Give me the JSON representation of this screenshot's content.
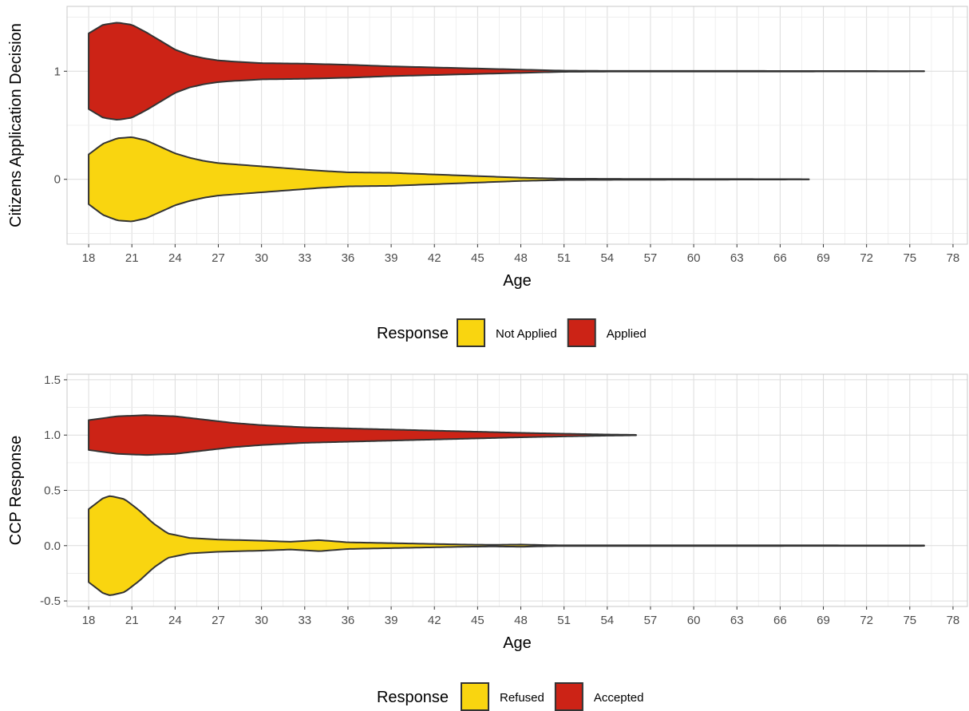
{
  "chart_data": [
    {
      "type": "violin",
      "xlabel": "Age",
      "ylabel": "Citizens Application Decision",
      "xlim": [
        16.5,
        79
      ],
      "ylim": [
        -0.6,
        1.6
      ],
      "x_ticks": [
        "18",
        "21",
        "24",
        "27",
        "30",
        "33",
        "36",
        "39",
        "42",
        "45",
        "48",
        "51",
        "54",
        "57",
        "60",
        "63",
        "66",
        "69",
        "72",
        "75",
        "78"
      ],
      "y_ticks": [
        "0",
        "1"
      ],
      "grid": true,
      "legend": {
        "title": "Response",
        "position": "bottom",
        "entries": [
          {
            "label": "Not Applied",
            "color": "#F9D510"
          },
          {
            "label": "Applied",
            "color": "#CC2316"
          }
        ]
      },
      "series": [
        {
          "name": "Not Applied",
          "color": "#F9D510",
          "y_center": 0,
          "halfwidth": [
            [
              18,
              0.23
            ],
            [
              19,
              0.33
            ],
            [
              20,
              0.38
            ],
            [
              21,
              0.39
            ],
            [
              22,
              0.36
            ],
            [
              23,
              0.3
            ],
            [
              24,
              0.24
            ],
            [
              25,
              0.2
            ],
            [
              26,
              0.17
            ],
            [
              27,
              0.15
            ],
            [
              28,
              0.14
            ],
            [
              30,
              0.12
            ],
            [
              32,
              0.1
            ],
            [
              34,
              0.08
            ],
            [
              36,
              0.065
            ],
            [
              39,
              0.06
            ],
            [
              42,
              0.045
            ],
            [
              45,
              0.03
            ],
            [
              48,
              0.015
            ],
            [
              51,
              0.006
            ],
            [
              55,
              0.004
            ],
            [
              60,
              0.003
            ],
            [
              65,
              0.002
            ],
            [
              68,
              0.001
            ]
          ]
        },
        {
          "name": "Applied",
          "color": "#CC2316",
          "y_center": 1,
          "halfwidth": [
            [
              18,
              0.35
            ],
            [
              19,
              0.43
            ],
            [
              20,
              0.45
            ],
            [
              21,
              0.43
            ],
            [
              22,
              0.36
            ],
            [
              23,
              0.28
            ],
            [
              24,
              0.2
            ],
            [
              25,
              0.15
            ],
            [
              26,
              0.12
            ],
            [
              27,
              0.1
            ],
            [
              28,
              0.09
            ],
            [
              30,
              0.075
            ],
            [
              33,
              0.07
            ],
            [
              36,
              0.06
            ],
            [
              39,
              0.045
            ],
            [
              42,
              0.035
            ],
            [
              45,
              0.025
            ],
            [
              48,
              0.015
            ],
            [
              51,
              0.005
            ],
            [
              54,
              0.003
            ],
            [
              60,
              0.003
            ],
            [
              70,
              0.002
            ],
            [
              76,
              0.001
            ]
          ]
        }
      ]
    },
    {
      "type": "violin",
      "xlabel": "Age",
      "ylabel": "CCP Response",
      "xlim": [
        16.5,
        79
      ],
      "ylim": [
        -0.55,
        1.55
      ],
      "x_ticks": [
        "18",
        "21",
        "24",
        "27",
        "30",
        "33",
        "36",
        "39",
        "42",
        "45",
        "48",
        "51",
        "54",
        "57",
        "60",
        "63",
        "66",
        "69",
        "72",
        "75",
        "78"
      ],
      "y_ticks": [
        "-0.5",
        "0.0",
        "0.5",
        "1.0",
        "1.5"
      ],
      "y_tick_values": [
        -0.5,
        0.0,
        0.5,
        1.0,
        1.5
      ],
      "grid": true,
      "legend": {
        "title": "Response",
        "position": "bottom",
        "entries": [
          {
            "label": "Refused",
            "color": "#F9D510"
          },
          {
            "label": "Accepted",
            "color": "#CC2316"
          }
        ]
      },
      "series": [
        {
          "name": "Refused",
          "color": "#F9D510",
          "y_center": 0,
          "halfwidth": [
            [
              18,
              0.33
            ],
            [
              19,
              0.43
            ],
            [
              19.5,
              0.45
            ],
            [
              20.5,
              0.42
            ],
            [
              21.5,
              0.32
            ],
            [
              22.5,
              0.2
            ],
            [
              23.5,
              0.11
            ],
            [
              25,
              0.07
            ],
            [
              27,
              0.055
            ],
            [
              30,
              0.045
            ],
            [
              32,
              0.035
            ],
            [
              34,
              0.05
            ],
            [
              36,
              0.03
            ],
            [
              38,
              0.025
            ],
            [
              40,
              0.02
            ],
            [
              42,
              0.015
            ],
            [
              44,
              0.01
            ],
            [
              46,
              0.007
            ],
            [
              48,
              0.01
            ],
            [
              50,
              0.004
            ],
            [
              51,
              0.003
            ],
            [
              55,
              0.003
            ],
            [
              65,
              0.003
            ],
            [
              76,
              0.002
            ]
          ]
        },
        {
          "name": "Accepted",
          "color": "#CC2316",
          "y_center": 1,
          "halfwidth": [
            [
              18,
              0.135
            ],
            [
              20,
              0.17
            ],
            [
              22,
              0.18
            ],
            [
              24,
              0.17
            ],
            [
              26,
              0.14
            ],
            [
              28,
              0.11
            ],
            [
              30,
              0.09
            ],
            [
              33,
              0.07
            ],
            [
              36,
              0.06
            ],
            [
              39,
              0.05
            ],
            [
              42,
              0.04
            ],
            [
              45,
              0.03
            ],
            [
              48,
              0.02
            ],
            [
              51,
              0.012
            ],
            [
              54,
              0.005
            ],
            [
              56,
              0.002
            ]
          ]
        }
      ]
    }
  ]
}
